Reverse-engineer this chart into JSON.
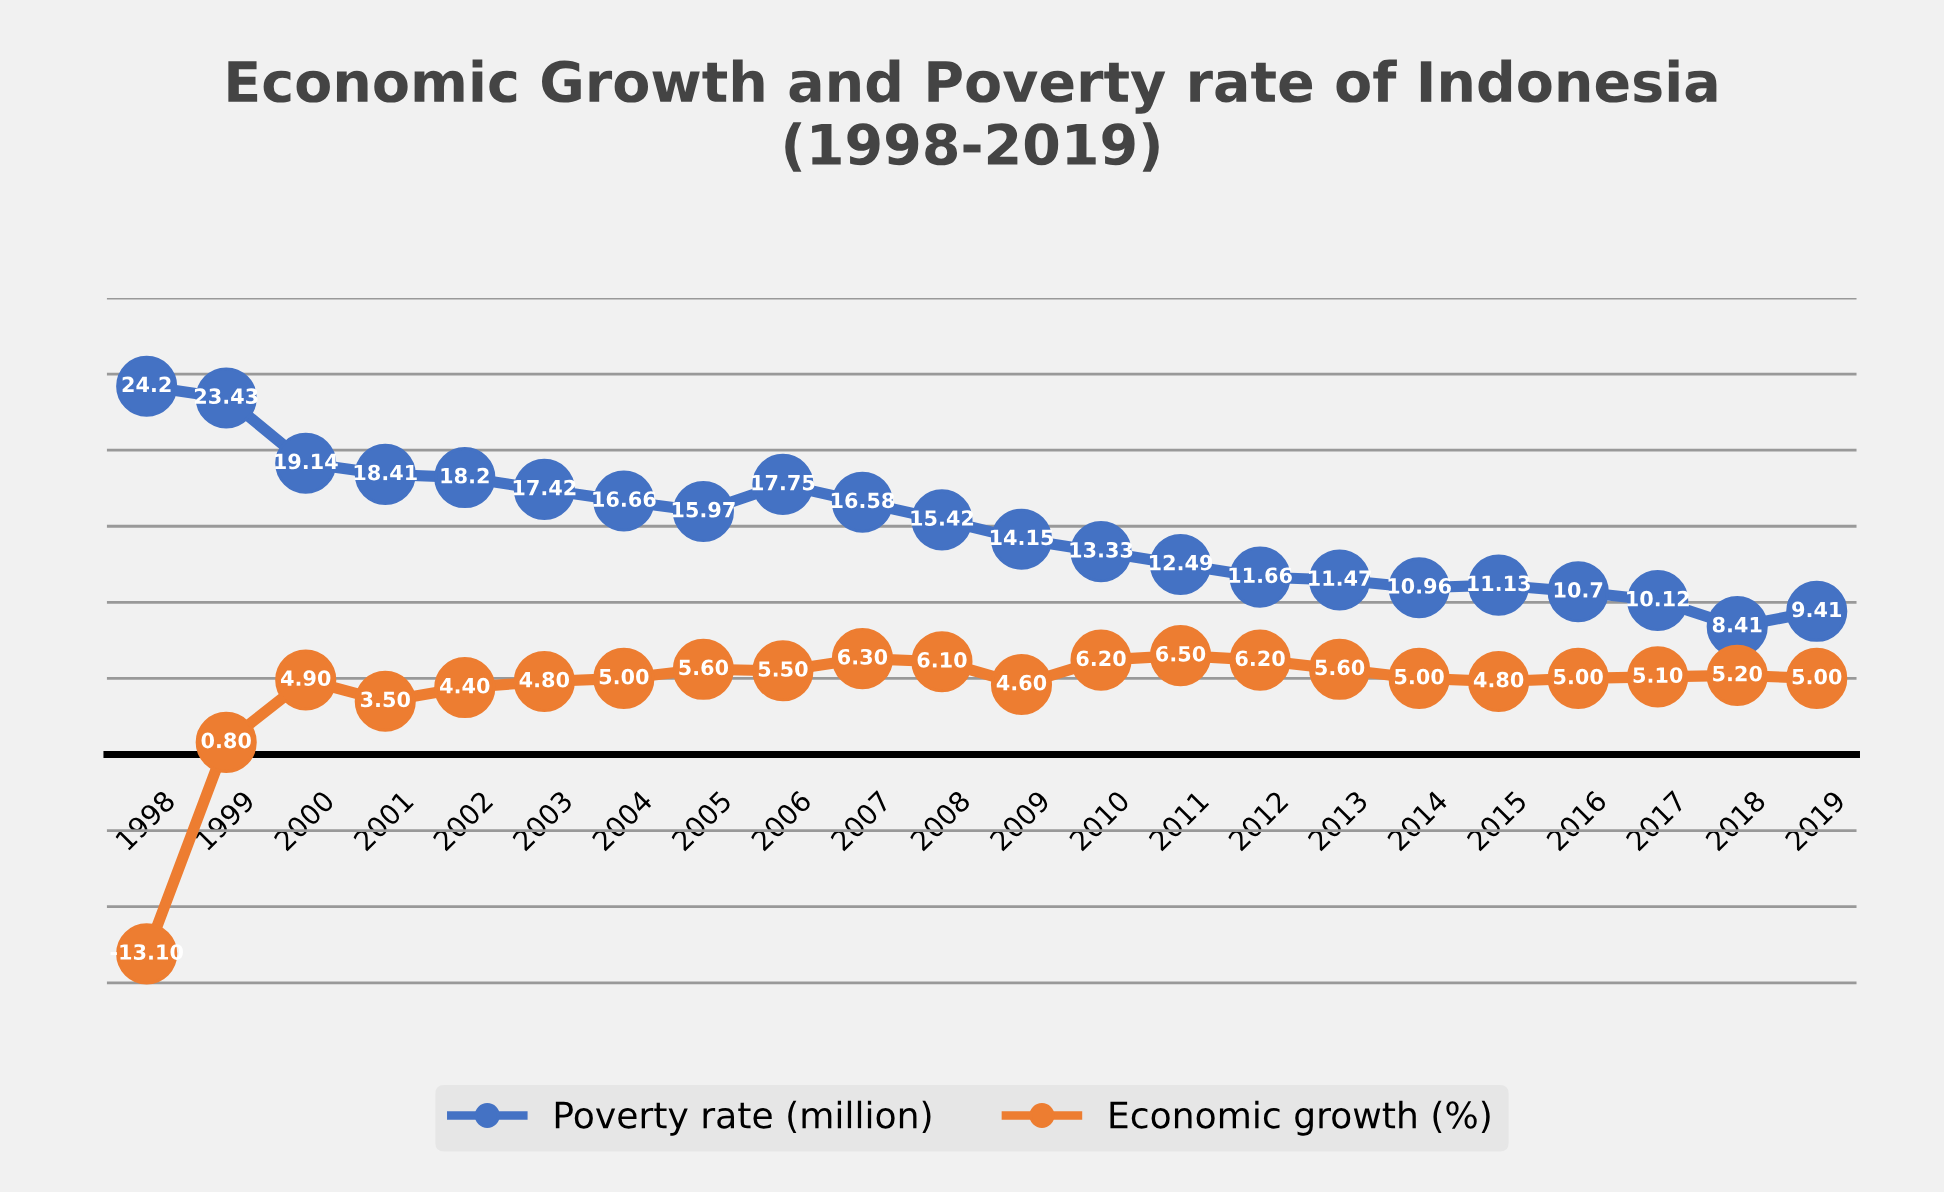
{
  "chart_data": {
    "type": "line",
    "title": "Economic Growth and Poverty rate of Indonesia\n(1998-2019)",
    "categories": [
      "1998",
      "1999",
      "2000",
      "2001",
      "2002",
      "2003",
      "2004",
      "2005",
      "2006",
      "2007",
      "2008",
      "2009",
      "2010",
      "2011",
      "2012",
      "2013",
      "2014",
      "2015",
      "2016",
      "2017",
      "2018",
      "2019"
    ],
    "series": [
      {
        "name": "Poverty rate (million)",
        "color": "#4472c4",
        "values": [
          24.2,
          23.43,
          19.14,
          18.41,
          18.2,
          17.42,
          16.66,
          15.97,
          17.75,
          16.58,
          15.42,
          14.15,
          13.33,
          12.49,
          11.66,
          11.47,
          10.96,
          11.13,
          10.7,
          10.12,
          8.41,
          9.41
        ],
        "value_labels": [
          "24.2",
          "23.43",
          "19.14",
          "18.41",
          "18.2",
          "17.42",
          "16.66",
          "15.97",
          "17.75",
          "16.58",
          "15.42",
          "14.15",
          "13.33",
          "12.49",
          "11.66",
          "11.47",
          "10.96",
          "11.13",
          "10.7",
          "10.12",
          "8.41",
          "9.41"
        ]
      },
      {
        "name": "Economic growth (%)",
        "color": "#ed7d31",
        "values": [
          -13.1,
          0.8,
          4.9,
          3.5,
          4.4,
          4.8,
          5.0,
          5.6,
          5.5,
          6.3,
          6.1,
          4.6,
          6.2,
          6.5,
          6.2,
          5.6,
          5.0,
          4.8,
          5.0,
          5.1,
          5.2,
          5.0
        ],
        "value_labels": [
          "-13.10",
          "0.80",
          "4.90",
          "3.50",
          "4.40",
          "4.80",
          "5.00",
          "5.60",
          "5.50",
          "6.30",
          "6.10",
          "4.60",
          "6.20",
          "6.50",
          "6.20",
          "5.60",
          "5.00",
          "4.80",
          "5.00",
          "5.10",
          "5.20",
          "5.00"
        ]
      }
    ],
    "tick_labels": "x",
    "grid": "y",
    "legend": "bottom",
    "marker": "circle",
    "line_style": "solid"
  }
}
